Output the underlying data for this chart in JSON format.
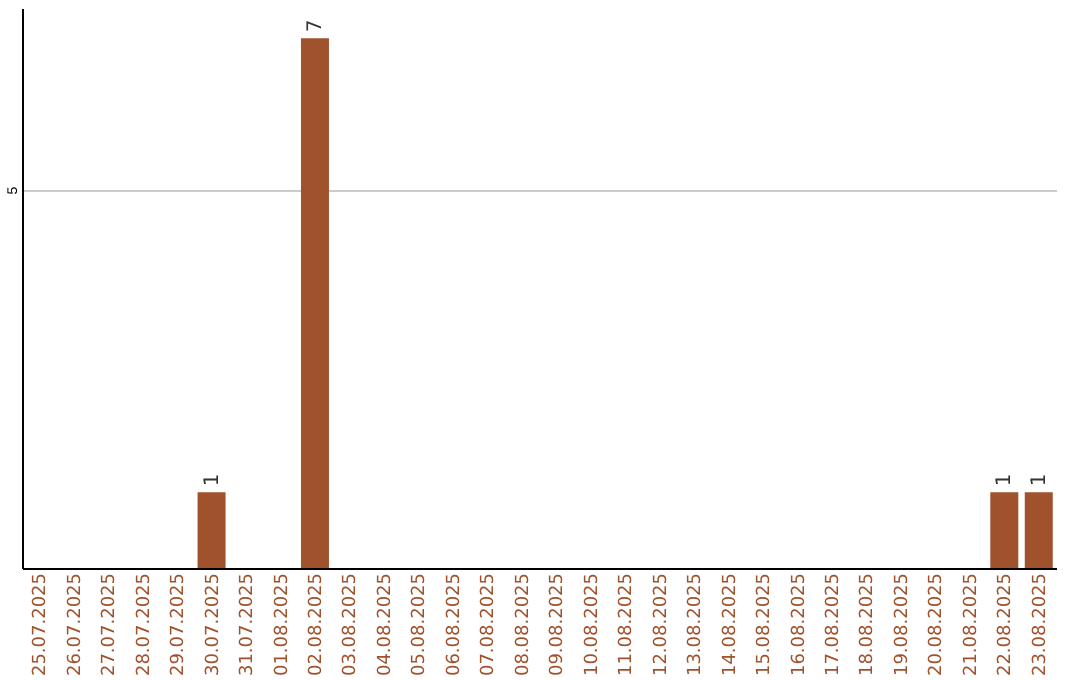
{
  "chart_data": {
    "type": "bar",
    "categories": [
      "25.07.2025",
      "26.07.2025",
      "27.07.2025",
      "28.07.2025",
      "29.07.2025",
      "30.07.2025",
      "31.07.2025",
      "01.08.2025",
      "02.08.2025",
      "03.08.2025",
      "04.08.2025",
      "05.08.2025",
      "06.08.2025",
      "07.08.2025",
      "08.08.2025",
      "09.08.2025",
      "10.08.2025",
      "11.08.2025",
      "12.08.2025",
      "13.08.2025",
      "14.08.2025",
      "15.08.2025",
      "16.08.2025",
      "17.08.2025",
      "18.08.2025",
      "19.08.2025",
      "20.08.2025",
      "21.08.2025",
      "22.08.2025",
      "23.08.2025"
    ],
    "values": [
      0,
      0,
      0,
      0,
      0,
      1,
      0,
      0,
      7,
      0,
      0,
      0,
      0,
      0,
      0,
      0,
      0,
      0,
      0,
      0,
      0,
      0,
      0,
      0,
      0,
      0,
      0,
      0,
      1,
      1
    ],
    "value_labels": [
      null,
      null,
      null,
      null,
      null,
      "1",
      null,
      null,
      "7",
      null,
      null,
      null,
      null,
      null,
      null,
      null,
      null,
      null,
      null,
      null,
      null,
      null,
      null,
      null,
      null,
      null,
      null,
      null,
      "1",
      "1"
    ],
    "color": "#a0522d",
    "ylim": [
      0,
      7.4
    ],
    "yticks": [
      5
    ],
    "grid": "y"
  }
}
